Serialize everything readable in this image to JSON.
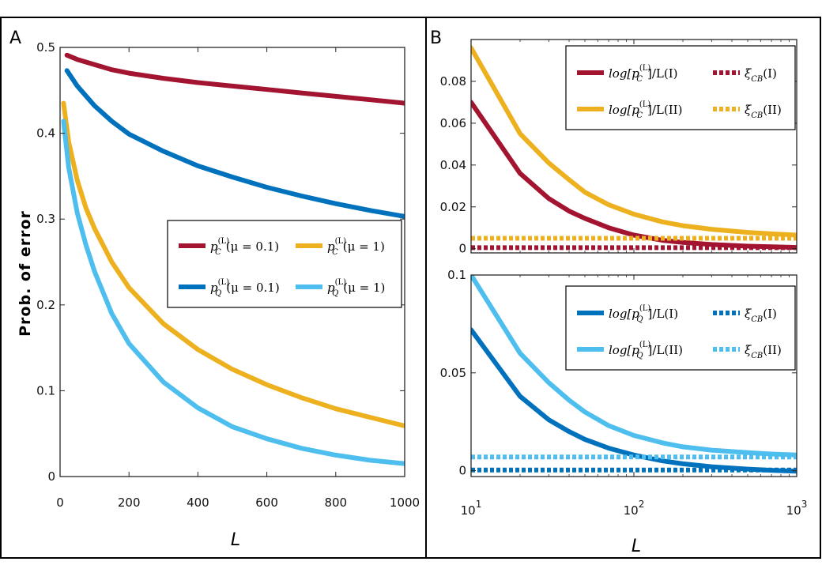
{
  "colors": {
    "red": "#A2142F",
    "blue": "#0072BD",
    "orange": "#EDB120",
    "lightblue": "#4DBEEE"
  },
  "chart_data": [
    {
      "panel": "A",
      "type": "line",
      "title": "",
      "xlabel": "L",
      "ylabel": "Prob. of error",
      "xlim": [
        0,
        1000
      ],
      "ylim": [
        0,
        0.5
      ],
      "xticks": [
        0,
        200,
        400,
        600,
        800,
        1000
      ],
      "yticks": [
        0,
        0.1,
        0.2,
        0.3,
        0.4,
        0.5
      ],
      "legend_position": "middle-right",
      "series": [
        {
          "name": "p_C^(L)(μ=0.1)",
          "label_base": "p",
          "label_sup": "(L)",
          "label_sub": "C",
          "label_tail": "(μ = 0.1)",
          "color": "red",
          "x": [
            20,
            50,
            100,
            150,
            200,
            300,
            400,
            500,
            600,
            700,
            800,
            900,
            1000
          ],
          "y": [
            0.491,
            0.486,
            0.48,
            0.474,
            0.47,
            0.464,
            0.459,
            0.455,
            0.451,
            0.447,
            0.443,
            0.439,
            0.435
          ]
        },
        {
          "name": "p_Q^(L)(μ=0.1)",
          "label_base": "p",
          "label_sup": "(L)",
          "label_sub": "Q",
          "label_tail": "(μ = 0.1)",
          "color": "blue",
          "x": [
            20,
            50,
            100,
            150,
            200,
            300,
            400,
            500,
            600,
            700,
            800,
            900,
            1000
          ],
          "y": [
            0.473,
            0.455,
            0.432,
            0.414,
            0.399,
            0.379,
            0.362,
            0.349,
            0.337,
            0.327,
            0.318,
            0.31,
            0.303
          ]
        },
        {
          "name": "p_C^(L)(μ=1)",
          "label_base": "p",
          "label_sup": "(L)",
          "label_sub": "C",
          "label_tail": "(μ = 1)",
          "color": "orange",
          "x": [
            10,
            25,
            50,
            75,
            100,
            150,
            200,
            300,
            400,
            500,
            600,
            700,
            800,
            900,
            1000
          ],
          "y": [
            0.435,
            0.39,
            0.345,
            0.313,
            0.289,
            0.25,
            0.22,
            0.178,
            0.148,
            0.125,
            0.107,
            0.092,
            0.079,
            0.069,
            0.059
          ]
        },
        {
          "name": "p_Q^(L)(μ=1)",
          "label_base": "p",
          "label_sup": "(L)",
          "label_sub": "Q",
          "label_tail": "(μ = 1)",
          "color": "lightblue",
          "x": [
            10,
            25,
            50,
            75,
            100,
            150,
            200,
            300,
            400,
            500,
            600,
            700,
            800,
            900,
            1000
          ],
          "y": [
            0.414,
            0.36,
            0.307,
            0.27,
            0.239,
            0.19,
            0.155,
            0.11,
            0.08,
            0.058,
            0.044,
            0.033,
            0.025,
            0.019,
            0.015
          ]
        }
      ]
    },
    {
      "panel": "B",
      "subplot": "top",
      "type": "line",
      "xscale": "log",
      "xlim": [
        10,
        1000
      ],
      "ylim": [
        -0.002,
        0.1
      ],
      "yticks": [
        0,
        0.02,
        0.04,
        0.06,
        0.08
      ],
      "legend_position": "top-right",
      "series": [
        {
          "name": "log[p_C^(L)]/L(I)",
          "label_base": "log[p",
          "label_sup": "(L)",
          "label_sub": "C",
          "label_tail": "]/L(I)",
          "color": "red",
          "style": "solid",
          "x": [
            10,
            20,
            30,
            40,
            50,
            70,
            100,
            150,
            200,
            300,
            500,
            700,
            1000
          ],
          "y": [
            0.07,
            0.036,
            0.024,
            0.018,
            0.0145,
            0.01,
            0.0065,
            0.004,
            0.003,
            0.002,
            0.0012,
            0.0009,
            0.0006
          ]
        },
        {
          "name": "log[p_C^(L)]/L(II)",
          "label_base": "log[p",
          "label_sup": "(L)",
          "label_sub": "C",
          "label_tail": "]/L(II)",
          "color": "orange",
          "style": "solid",
          "x": [
            10,
            20,
            30,
            40,
            50,
            70,
            100,
            150,
            200,
            300,
            500,
            700,
            1000
          ],
          "y": [
            0.096,
            0.055,
            0.041,
            0.033,
            0.027,
            0.021,
            0.0165,
            0.0128,
            0.011,
            0.0093,
            0.0078,
            0.0071,
            0.0065
          ]
        },
        {
          "name": "ξ_CB(I)",
          "label_base": "ξ",
          "label_sup": "",
          "label_sub": "CB",
          "label_tail": "(I)",
          "color": "red",
          "style": "dotted",
          "x": [
            10,
            1000
          ],
          "y": [
            0.0005,
            0.0005
          ]
        },
        {
          "name": "ξ_CB(II)",
          "label_base": "ξ",
          "label_sup": "",
          "label_sub": "CB",
          "label_tail": "(II)",
          "color": "orange",
          "style": "dotted",
          "x": [
            10,
            1000
          ],
          "y": [
            0.005,
            0.005
          ]
        }
      ]
    },
    {
      "panel": "B",
      "subplot": "bottom",
      "type": "line",
      "xscale": "log",
      "xlabel": "L",
      "xlim": [
        10,
        1000
      ],
      "ylim": [
        -0.003,
        0.1
      ],
      "yticks": [
        0,
        0.05,
        0.1
      ],
      "xtick_base": "10",
      "xtick_exponents": [
        "1",
        "2",
        "3"
      ],
      "legend_position": "top-right",
      "series": [
        {
          "name": "log[p_Q^(L)]/L(I)",
          "label_base": "log[p",
          "label_sup": "(L)",
          "label_sub": "Q",
          "label_tail": "]/L(I)",
          "color": "blue",
          "style": "solid",
          "x": [
            10,
            20,
            30,
            40,
            50,
            70,
            100,
            150,
            200,
            300,
            500,
            700,
            1000
          ],
          "y": [
            0.072,
            0.038,
            0.026,
            0.02,
            0.016,
            0.0115,
            0.008,
            0.005,
            0.0035,
            0.002,
            0.0008,
            0.0002,
            -0.0003
          ]
        },
        {
          "name": "log[p_Q^(L)]/L(II)",
          "label_base": "log[p",
          "label_sup": "(L)",
          "label_sub": "Q",
          "label_tail": "]/L(II)",
          "color": "lightblue",
          "style": "solid",
          "x": [
            10,
            20,
            30,
            40,
            50,
            70,
            100,
            150,
            200,
            300,
            500,
            700,
            1000
          ],
          "y": [
            0.1,
            0.06,
            0.045,
            0.036,
            0.03,
            0.023,
            0.018,
            0.0142,
            0.0122,
            0.0105,
            0.0092,
            0.0085,
            0.008
          ]
        },
        {
          "name": "ξ_CB(I)",
          "label_base": "ξ",
          "label_sup": "",
          "label_sub": "CB",
          "label_tail": "(I)",
          "color": "blue",
          "style": "dotted",
          "x": [
            10,
            1000
          ],
          "y": [
            0.0003,
            0.0003
          ]
        },
        {
          "name": "ξ_CB(II)",
          "label_base": "ξ",
          "label_sup": "",
          "label_sub": "CB",
          "label_tail": "(II)",
          "color": "lightblue",
          "style": "dotted",
          "x": [
            10,
            1000
          ],
          "y": [
            0.007,
            0.007
          ]
        }
      ]
    }
  ],
  "panel_labels": {
    "a": "A",
    "b": "B"
  }
}
